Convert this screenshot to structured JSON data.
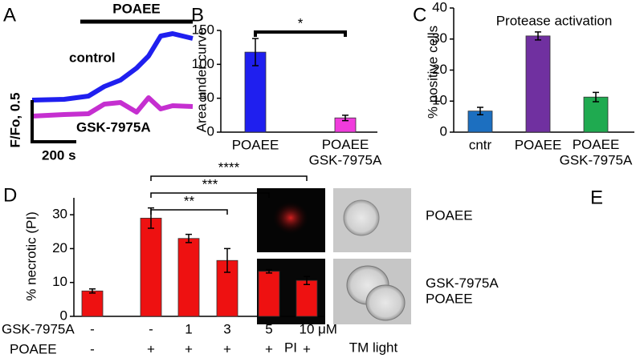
{
  "chart_data": [
    {
      "type": "line",
      "label": "A",
      "annotation": "POAEE",
      "scale_y_label": "F/Fo, 0.5",
      "scale_x_label": "200 s",
      "x": [
        0,
        145,
        255,
        327,
        400,
        473,
        527,
        582,
        636,
        727
      ],
      "xlim": [
        0,
        727
      ],
      "ylim": [
        0.45,
        1.85
      ],
      "series": [
        {
          "name": "control",
          "color": "#1f1fef",
          "values": [
            1.0,
            1.01,
            1.05,
            1.17,
            1.25,
            1.4,
            1.55,
            1.8,
            1.83,
            1.77
          ]
        },
        {
          "name": "GSK-7975A",
          "color": "#c52fd0",
          "values": [
            0.8,
            0.82,
            0.83,
            0.95,
            0.97,
            0.85,
            1.03,
            0.89,
            0.93,
            0.92
          ]
        }
      ]
    },
    {
      "type": "bar",
      "label": "B",
      "ylabel": "Area under curve",
      "categories": [
        "POAEE",
        "POAEE\nGSK-7975A"
      ],
      "values": [
        118,
        21
      ],
      "errors": [
        20,
        4
      ],
      "colors": [
        "#1f1fef",
        "#f03cdc"
      ],
      "ylim": [
        0,
        150
      ],
      "yticks": [
        0,
        50,
        100,
        150
      ],
      "significance": [
        "*"
      ]
    },
    {
      "type": "bar",
      "label": "C",
      "title": "Protease activation",
      "ylabel": "% positive cells",
      "categories": [
        "cntr",
        "POAEE",
        "POAEE\nGSK-7975A"
      ],
      "values": [
        6.8,
        31,
        11.3
      ],
      "errors": [
        1.2,
        1.3,
        1.5
      ],
      "colors": [
        "#1c6fc0",
        "#7030a0",
        "#1faa50"
      ],
      "ylim": [
        0,
        40
      ],
      "yticks": [
        0,
        10,
        20,
        30,
        40
      ]
    },
    {
      "type": "bar",
      "label": "D",
      "ylabel": "% necrotic (PI)",
      "categories": [
        null,
        null,
        null,
        null,
        null,
        null
      ],
      "values": [
        7.5,
        29,
        23,
        16.5,
        13.3,
        10.6
      ],
      "errors": [
        0.6,
        3,
        1.2,
        3.5,
        0.5,
        1.2
      ],
      "colors": [
        "#ee1111",
        "#ee1111",
        "#ee1111",
        "#ee1111",
        "#ee1111",
        "#ee1111"
      ],
      "ylim": [
        0,
        35
      ],
      "yticks": [
        0,
        10,
        20,
        30
      ],
      "significance": [
        "**",
        "***",
        "****"
      ],
      "rows": [
        {
          "label": "GSK-7975A",
          "values": [
            "-",
            "-",
            "1",
            "3",
            "5",
            "10"
          ],
          "unit": "μM"
        },
        {
          "label": "POAEE",
          "values": [
            "-",
            "+",
            "+",
            "+",
            "+",
            "+"
          ]
        }
      ]
    }
  ],
  "panel_e": {
    "label": "E",
    "columns": [
      "PI",
      "TM light"
    ],
    "rows": [
      "POAEE",
      "GSK-7975A\nPOAEE"
    ]
  }
}
